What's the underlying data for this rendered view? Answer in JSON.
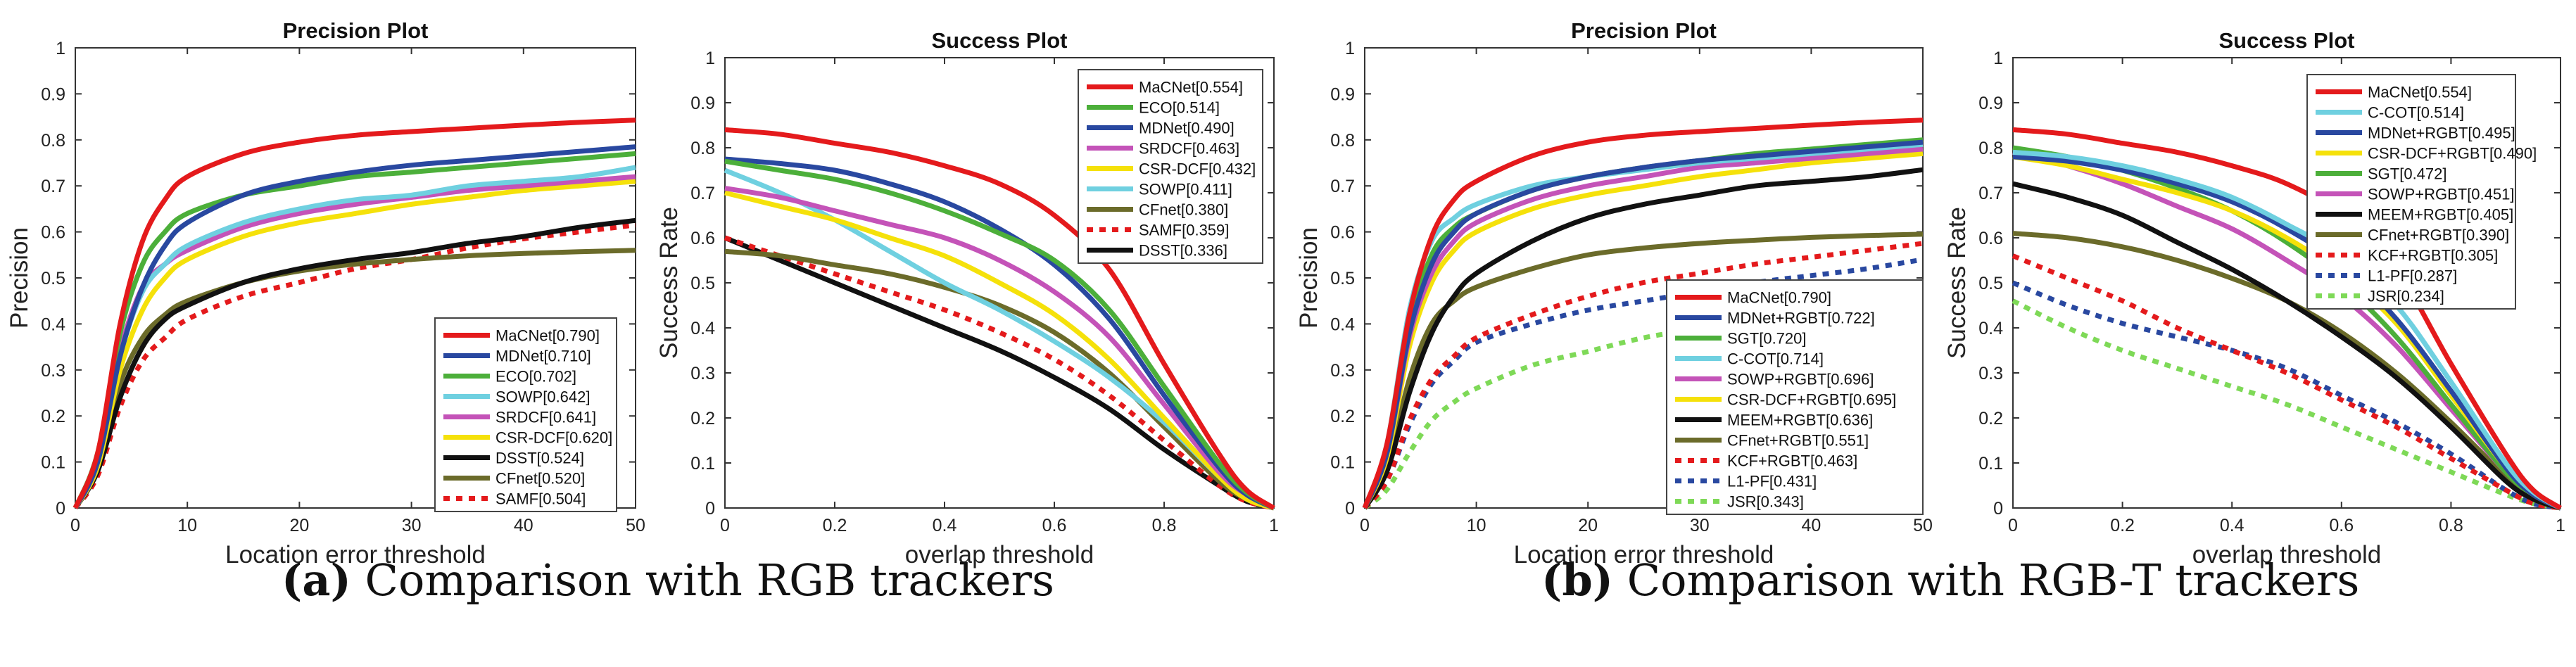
{
  "captions": [
    {
      "label": "(a)",
      "text": " Comparison with RGB trackers"
    },
    {
      "label": "(b)",
      "text": " Comparison with RGB-T trackers"
    }
  ],
  "chart_data": [
    {
      "type": "line",
      "title": "Precision Plot",
      "xlabel": "Location error threshold",
      "ylabel": "Precision",
      "xlim": [
        0,
        50
      ],
      "ylim": [
        0,
        1
      ],
      "xticks": [
        0,
        10,
        20,
        30,
        40,
        50
      ],
      "yticks": [
        0,
        0.1,
        0.2,
        0.3,
        0.4,
        0.5,
        0.6,
        0.7,
        0.8,
        0.9,
        1
      ],
      "legend_position": "bottom-right",
      "grid": false,
      "x": [
        0,
        2,
        4,
        6,
        8,
        10,
        15,
        20,
        25,
        30,
        35,
        40,
        45,
        50
      ],
      "series": [
        {
          "name": "MaCNet[0.790]",
          "color": "#e41a1c",
          "dash": false,
          "values": [
            0,
            0.12,
            0.4,
            0.58,
            0.67,
            0.72,
            0.77,
            0.795,
            0.81,
            0.818,
            0.825,
            0.832,
            0.838,
            0.843
          ]
        },
        {
          "name": "MDNet[0.710]",
          "color": "#2948a0",
          "dash": false,
          "values": [
            0,
            0.1,
            0.33,
            0.48,
            0.57,
            0.62,
            0.68,
            0.71,
            0.73,
            0.745,
            0.755,
            0.765,
            0.775,
            0.785
          ]
        },
        {
          "name": "ECO[0.702]",
          "color": "#4caf3a",
          "dash": false,
          "values": [
            0,
            0.12,
            0.38,
            0.53,
            0.6,
            0.64,
            0.68,
            0.7,
            0.72,
            0.73,
            0.74,
            0.75,
            0.76,
            0.77
          ]
        },
        {
          "name": "SOWP[0.642]",
          "color": "#6fd0e0",
          "dash": false,
          "values": [
            0,
            0.1,
            0.33,
            0.47,
            0.53,
            0.57,
            0.62,
            0.65,
            0.67,
            0.68,
            0.7,
            0.71,
            0.72,
            0.74
          ]
        },
        {
          "name": "SRDCF[0.641]",
          "color": "#c453b8",
          "dash": false,
          "values": [
            0,
            0.1,
            0.34,
            0.48,
            0.53,
            0.56,
            0.61,
            0.64,
            0.66,
            0.675,
            0.69,
            0.7,
            0.71,
            0.72
          ]
        },
        {
          "name": "CSR-DCF[0.620]",
          "color": "#f5e10a",
          "dash": false,
          "values": [
            0,
            0.09,
            0.3,
            0.43,
            0.5,
            0.54,
            0.59,
            0.62,
            0.64,
            0.66,
            0.675,
            0.69,
            0.7,
            0.71
          ]
        },
        {
          "name": "DSST[0.524]",
          "color": "#111111",
          "dash": false,
          "values": [
            0,
            0.08,
            0.24,
            0.35,
            0.41,
            0.44,
            0.49,
            0.52,
            0.54,
            0.555,
            0.575,
            0.59,
            0.61,
            0.625
          ]
        },
        {
          "name": "CFnet[0.520]",
          "color": "#6b6b2a",
          "dash": false,
          "values": [
            0,
            0.09,
            0.27,
            0.37,
            0.42,
            0.45,
            0.49,
            0.515,
            0.53,
            0.54,
            0.548,
            0.553,
            0.557,
            0.56
          ]
        },
        {
          "name": "SAMF[0.504]",
          "color": "#e41a1c",
          "dash": true,
          "values": [
            0,
            0.07,
            0.22,
            0.32,
            0.37,
            0.41,
            0.46,
            0.49,
            0.52,
            0.54,
            0.565,
            0.585,
            0.6,
            0.615
          ]
        }
      ]
    },
    {
      "type": "line",
      "title": "Success Plot",
      "xlabel": "overlap threshold",
      "ylabel": "Success Rate",
      "xlim": [
        0,
        1
      ],
      "ylim": [
        0,
        1
      ],
      "xticks": [
        0,
        0.2,
        0.4,
        0.6,
        0.8,
        1
      ],
      "yticks": [
        0,
        0.1,
        0.2,
        0.3,
        0.4,
        0.5,
        0.6,
        0.7,
        0.8,
        0.9,
        1
      ],
      "legend_position": "top-right",
      "grid": false,
      "x": [
        0,
        0.1,
        0.2,
        0.3,
        0.4,
        0.5,
        0.6,
        0.7,
        0.8,
        0.9,
        0.95,
        1
      ],
      "series": [
        {
          "name": "MaCNet[0.554]",
          "color": "#e41a1c",
          "dash": false,
          "values": [
            0.84,
            0.83,
            0.81,
            0.79,
            0.76,
            0.72,
            0.65,
            0.53,
            0.32,
            0.12,
            0.04,
            0
          ]
        },
        {
          "name": "ECO[0.514]",
          "color": "#4caf3a",
          "dash": false,
          "values": [
            0.77,
            0.75,
            0.73,
            0.7,
            0.66,
            0.61,
            0.55,
            0.44,
            0.27,
            0.1,
            0.035,
            0
          ]
        },
        {
          "name": "MDNet[0.490]",
          "color": "#2948a0",
          "dash": false,
          "values": [
            0.775,
            0.765,
            0.75,
            0.72,
            0.68,
            0.62,
            0.54,
            0.42,
            0.25,
            0.09,
            0.03,
            0
          ]
        },
        {
          "name": "SRDCF[0.463]",
          "color": "#c453b8",
          "dash": false,
          "values": [
            0.71,
            0.69,
            0.66,
            0.63,
            0.6,
            0.55,
            0.48,
            0.38,
            0.23,
            0.08,
            0.03,
            0
          ]
        },
        {
          "name": "CSR-DCF[0.432]",
          "color": "#f5e10a",
          "dash": false,
          "values": [
            0.7,
            0.67,
            0.64,
            0.6,
            0.56,
            0.5,
            0.43,
            0.33,
            0.2,
            0.07,
            0.02,
            0
          ]
        },
        {
          "name": "SOWP[0.411]",
          "color": "#6fd0e0",
          "dash": false,
          "values": [
            0.75,
            0.7,
            0.64,
            0.57,
            0.5,
            0.44,
            0.37,
            0.29,
            0.19,
            0.07,
            0.02,
            0
          ]
        },
        {
          "name": "CFnet[0.380]",
          "color": "#6b6b2a",
          "dash": false,
          "values": [
            0.57,
            0.56,
            0.54,
            0.52,
            0.49,
            0.45,
            0.39,
            0.3,
            0.18,
            0.06,
            0.02,
            0
          ]
        },
        {
          "name": "SAMF[0.359]",
          "color": "#e41a1c",
          "dash": true,
          "values": [
            0.6,
            0.56,
            0.52,
            0.48,
            0.44,
            0.39,
            0.33,
            0.25,
            0.15,
            0.05,
            0.015,
            0
          ]
        },
        {
          "name": "DSST[0.336]",
          "color": "#111111",
          "dash": false,
          "values": [
            0.6,
            0.55,
            0.5,
            0.45,
            0.4,
            0.35,
            0.29,
            0.22,
            0.13,
            0.05,
            0.015,
            0
          ]
        }
      ]
    },
    {
      "type": "line",
      "title": "Precision Plot",
      "xlabel": "Location error threshold",
      "ylabel": "Precision",
      "xlim": [
        0,
        50
      ],
      "ylim": [
        0,
        1
      ],
      "xticks": [
        0,
        10,
        20,
        30,
        40,
        50
      ],
      "yticks": [
        0,
        0.1,
        0.2,
        0.3,
        0.4,
        0.5,
        0.6,
        0.7,
        0.8,
        0.9,
        1
      ],
      "legend_position": "bottom-right",
      "grid": false,
      "x": [
        0,
        2,
        4,
        6,
        8,
        10,
        15,
        20,
        25,
        30,
        35,
        40,
        45,
        50
      ],
      "series": [
        {
          "name": "MaCNet[0.790]",
          "color": "#e41a1c",
          "dash": false,
          "values": [
            0,
            0.14,
            0.42,
            0.59,
            0.67,
            0.71,
            0.765,
            0.795,
            0.81,
            0.818,
            0.825,
            0.832,
            0.838,
            0.843
          ]
        },
        {
          "name": "MDNet+RGBT[0.722]",
          "color": "#2948a0",
          "dash": false,
          "values": [
            0,
            0.12,
            0.38,
            0.53,
            0.6,
            0.64,
            0.69,
            0.72,
            0.74,
            0.755,
            0.765,
            0.775,
            0.785,
            0.795
          ]
        },
        {
          "name": "SGT[0.720]",
          "color": "#4caf3a",
          "dash": false,
          "values": [
            0,
            0.13,
            0.4,
            0.55,
            0.61,
            0.64,
            0.69,
            0.72,
            0.74,
            0.755,
            0.77,
            0.78,
            0.79,
            0.8
          ]
        },
        {
          "name": "C-COT[0.714]",
          "color": "#6fd0e0",
          "dash": false,
          "values": [
            0,
            0.14,
            0.43,
            0.58,
            0.63,
            0.66,
            0.7,
            0.72,
            0.735,
            0.75,
            0.76,
            0.77,
            0.78,
            0.79
          ]
        },
        {
          "name": "SOWP+RGBT[0.696]",
          "color": "#c453b8",
          "dash": false,
          "values": [
            0,
            0.12,
            0.37,
            0.51,
            0.58,
            0.62,
            0.67,
            0.7,
            0.72,
            0.74,
            0.75,
            0.76,
            0.77,
            0.78
          ]
        },
        {
          "name": "CSR-DCF+RGBT[0.695]",
          "color": "#f5e10a",
          "dash": false,
          "values": [
            0,
            0.11,
            0.35,
            0.49,
            0.56,
            0.6,
            0.65,
            0.68,
            0.7,
            0.72,
            0.735,
            0.75,
            0.76,
            0.77
          ]
        },
        {
          "name": "MEEM+RGBT[0.636]",
          "color": "#111111",
          "dash": false,
          "values": [
            0,
            0.08,
            0.25,
            0.38,
            0.46,
            0.51,
            0.58,
            0.63,
            0.66,
            0.68,
            0.7,
            0.71,
            0.72,
            0.735
          ]
        },
        {
          "name": "CFnet+RGBT[0.551]",
          "color": "#6b6b2a",
          "dash": false,
          "values": [
            0,
            0.09,
            0.28,
            0.4,
            0.45,
            0.48,
            0.52,
            0.55,
            0.565,
            0.575,
            0.582,
            0.588,
            0.592,
            0.595
          ]
        },
        {
          "name": "KCF+RGBT[0.463]",
          "color": "#e41a1c",
          "dash": true,
          "values": [
            0,
            0.06,
            0.19,
            0.28,
            0.33,
            0.37,
            0.42,
            0.46,
            0.49,
            0.51,
            0.53,
            0.545,
            0.56,
            0.575
          ]
        },
        {
          "name": "L1-PF[0.431]",
          "color": "#2948a0",
          "dash": true,
          "values": [
            0,
            0.06,
            0.18,
            0.27,
            0.32,
            0.36,
            0.4,
            0.43,
            0.45,
            0.47,
            0.49,
            0.505,
            0.52,
            0.54
          ]
        },
        {
          "name": "JSR[0.343]",
          "color": "#7ed957",
          "dash": true,
          "values": [
            0,
            0.04,
            0.12,
            0.19,
            0.23,
            0.26,
            0.31,
            0.34,
            0.37,
            0.39,
            0.41,
            0.43,
            0.45,
            0.48
          ]
        }
      ]
    },
    {
      "type": "line",
      "title": "Success Plot",
      "xlabel": "overlap threshold",
      "ylabel": "Success Rate",
      "xlim": [
        0,
        1
      ],
      "ylim": [
        0,
        1
      ],
      "xticks": [
        0,
        0.2,
        0.4,
        0.6,
        0.8,
        1
      ],
      "yticks": [
        0,
        0.1,
        0.2,
        0.3,
        0.4,
        0.5,
        0.6,
        0.7,
        0.8,
        0.9,
        1
      ],
      "legend_position": "top-right",
      "grid": false,
      "x": [
        0,
        0.1,
        0.2,
        0.3,
        0.4,
        0.5,
        0.6,
        0.7,
        0.8,
        0.9,
        0.95,
        1
      ],
      "series": [
        {
          "name": "MaCNet[0.554]",
          "color": "#e41a1c",
          "dash": false,
          "values": [
            0.84,
            0.83,
            0.81,
            0.79,
            0.76,
            0.72,
            0.65,
            0.53,
            0.32,
            0.12,
            0.04,
            0
          ]
        },
        {
          "name": "C-COT[0.514]",
          "color": "#6fd0e0",
          "dash": false,
          "values": [
            0.79,
            0.78,
            0.76,
            0.73,
            0.69,
            0.63,
            0.56,
            0.45,
            0.28,
            0.1,
            0.035,
            0
          ]
        },
        {
          "name": "MDNet+RGBT[0.495]",
          "color": "#2948a0",
          "dash": false,
          "values": [
            0.78,
            0.77,
            0.75,
            0.72,
            0.68,
            0.62,
            0.54,
            0.42,
            0.26,
            0.09,
            0.03,
            0
          ]
        },
        {
          "name": "CSR-DCF+RGBT[0.490]",
          "color": "#f5e10a",
          "dash": false,
          "values": [
            0.78,
            0.76,
            0.73,
            0.7,
            0.66,
            0.6,
            0.52,
            0.41,
            0.25,
            0.09,
            0.03,
            0
          ]
        },
        {
          "name": "SGT[0.472]",
          "color": "#4caf3a",
          "dash": false,
          "values": [
            0.8,
            0.78,
            0.75,
            0.71,
            0.66,
            0.59,
            0.5,
            0.38,
            0.23,
            0.08,
            0.03,
            0
          ]
        },
        {
          "name": "SOWP+RGBT[0.451]",
          "color": "#c453b8",
          "dash": false,
          "values": [
            0.79,
            0.76,
            0.72,
            0.67,
            0.62,
            0.55,
            0.47,
            0.36,
            0.22,
            0.08,
            0.03,
            0
          ]
        },
        {
          "name": "MEEM+RGBT[0.405]",
          "color": "#111111",
          "dash": false,
          "values": [
            0.72,
            0.69,
            0.65,
            0.59,
            0.53,
            0.46,
            0.38,
            0.29,
            0.18,
            0.06,
            0.02,
            0
          ]
        },
        {
          "name": "CFnet+RGBT[0.390]",
          "color": "#6b6b2a",
          "dash": false,
          "values": [
            0.61,
            0.6,
            0.58,
            0.55,
            0.51,
            0.46,
            0.39,
            0.3,
            0.19,
            0.07,
            0.02,
            0
          ]
        },
        {
          "name": "KCF+RGBT[0.305]",
          "color": "#e41a1c",
          "dash": true,
          "values": [
            0.56,
            0.51,
            0.46,
            0.4,
            0.35,
            0.3,
            0.24,
            0.18,
            0.11,
            0.04,
            0.01,
            0
          ]
        },
        {
          "name": "L1-PF[0.287]",
          "color": "#2948a0",
          "dash": true,
          "values": [
            0.5,
            0.45,
            0.41,
            0.38,
            0.35,
            0.31,
            0.25,
            0.19,
            0.12,
            0.04,
            0.01,
            0
          ]
        },
        {
          "name": "JSR[0.234]",
          "color": "#7ed957",
          "dash": true,
          "values": [
            0.46,
            0.4,
            0.35,
            0.31,
            0.27,
            0.23,
            0.18,
            0.13,
            0.08,
            0.03,
            0.01,
            0
          ]
        }
      ]
    }
  ]
}
